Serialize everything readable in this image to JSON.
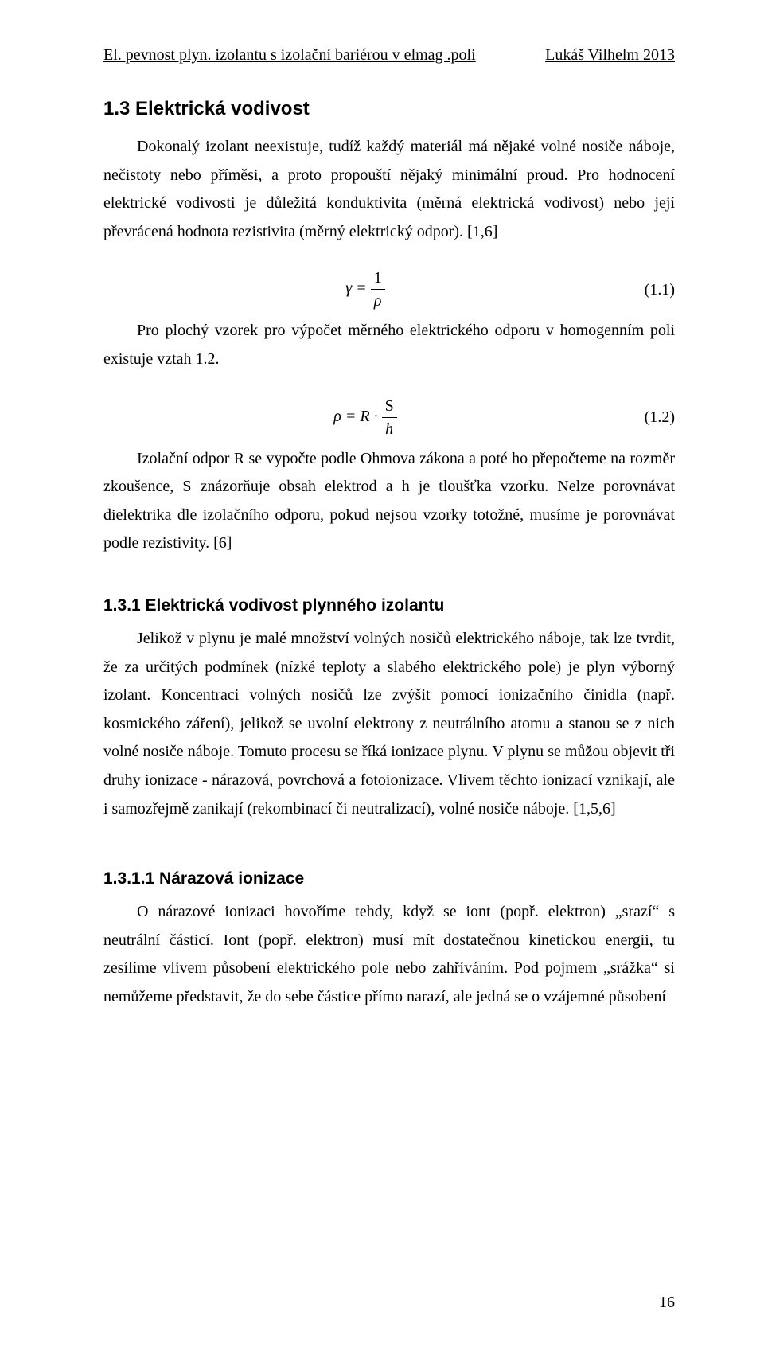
{
  "header": {
    "left": "El. pevnost plyn. izolantu s izolační bariérou v elmag .poli",
    "right": "Lukáš Vilhelm  2013"
  },
  "section_1_3": {
    "heading": "1.3  Elektrická vodivost",
    "para1": "Dokonalý izolant neexistuje, tudíž každý materiál má nějaké volné nosiče náboje, nečistoty nebo příměsi, a proto propouští nějaký minimální proud. Pro hodnocení elektrické vodivosti je důležitá konduktivita (měrná elektrická vodivost) nebo její převrácená hodnota rezistivita (měrný elektrický odpor). [1,6]",
    "eq1": {
      "lhs": "γ =",
      "num": "1",
      "den": "ρ",
      "label": "(1.1)"
    },
    "para2_lead": "Pro plochý vzorek pro výpočet měrného elektrického odporu v homogenním poli existuje vztah 1.2.",
    "eq2": {
      "lhs": "ρ = R ·",
      "num": "S",
      "den": "h",
      "label": "(1.2)"
    },
    "para3": "Izolační odpor R se vypočte podle Ohmova zákona a poté ho přepočteme na rozměr zkoušence, S znázorňuje obsah elektrod a h je tloušťka vzorku. Nelze porovnávat dielektrika dle izolačního odporu, pokud nejsou vzorky totožné, musíme je porovnávat podle rezistivity. [6]"
  },
  "section_1_3_1": {
    "heading": "1.3.1   Elektrická vodivost plynného izolantu",
    "para": "Jelikož v plynu je malé množství volných nosičů elektrického náboje, tak lze tvrdit, že za určitých podmínek (nízké teploty a slabého elektrického pole) je plyn výborný izolant. Koncentraci volných nosičů lze zvýšit pomocí ionizačního činidla (např. kosmického záření), jelikož se uvolní elektrony z neutrálního atomu a stanou se z nich volné nosiče náboje. Tomuto procesu se říká ionizace plynu. V plynu se můžou objevit tři druhy ionizace -  nárazová, povrchová a fotoionizace. Vlivem těchto ionizací vznikají, ale i samozřejmě zanikají (rekombinací či neutralizací), volné nosiče náboje. [1,5,6]"
  },
  "section_1_3_1_1": {
    "heading": "1.3.1.1  Nárazová ionizace",
    "para": "O nárazové ionizaci hovoříme tehdy, když se iont (popř. elektron) „srazí“ s neutrální částicí. Iont (popř. elektron) musí mít dostatečnou kinetickou energii, tu zesílíme vlivem působení elektrického pole nebo zahříváním. Pod pojmem „srážka“ si nemůžeme představit, že do sebe částice přímo narazí, ale jedná se o vzájemné působení"
  },
  "page_number": "16"
}
